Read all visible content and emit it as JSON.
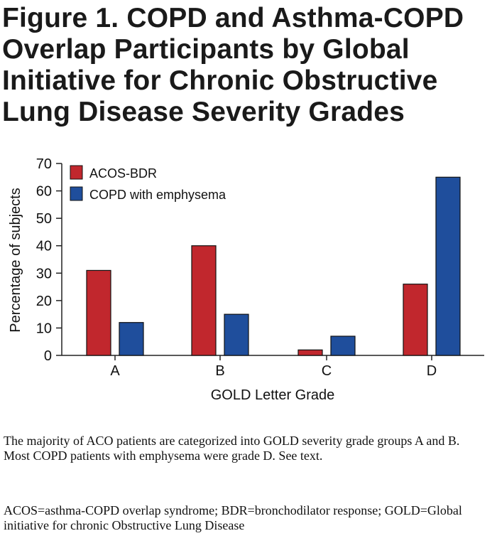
{
  "figure": {
    "title": "Figure 1. COPD and Asthma-COPD\nOverlap Participants by Global\nInitiative for Chronic Obstructive\nLung Disease Severity Grades",
    "caption_1": "The majority of ACO patients are categorized into GOLD severity grade groups A and B.  Most COPD patients with emphysema were grade D. See text.",
    "caption_2": "ACOS=asthma-COPD overlap syndrome; BDR=bronchodilator response; GOLD=Global initiative for chronic Obstructive Lung Disease"
  },
  "chart_data": {
    "type": "bar",
    "categories": [
      "A",
      "B",
      "C",
      "D"
    ],
    "series": [
      {
        "name": "ACOS-BDR",
        "values": [
          31,
          40,
          2,
          26
        ],
        "color": "#c1272d"
      },
      {
        "name": "COPD with emphysema",
        "values": [
          12,
          15,
          7,
          65
        ],
        "color": "#1f4e9c"
      }
    ],
    "xlabel": "GOLD Letter Grade",
    "ylabel": "Percentage of subjects",
    "ylim": [
      0,
      70
    ],
    "yticks": [
      0,
      10,
      20,
      30,
      40,
      50,
      60,
      70
    ],
    "grid": false,
    "legend_position": "top-left"
  }
}
